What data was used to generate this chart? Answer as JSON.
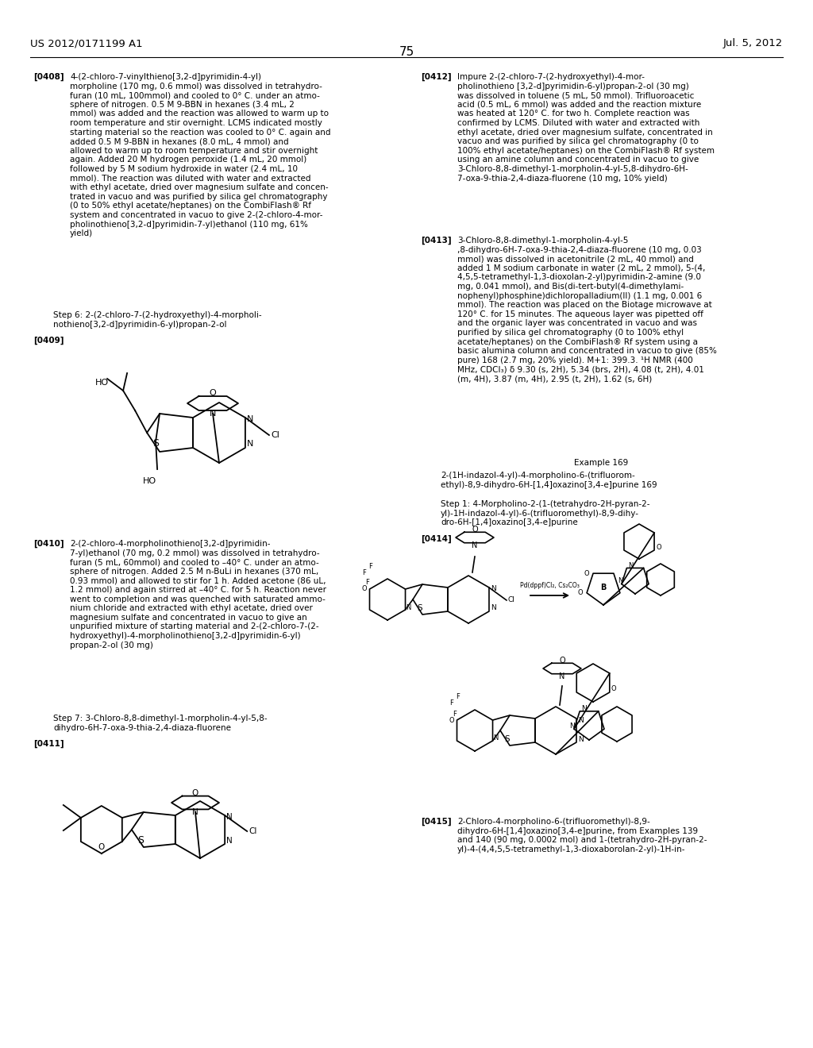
{
  "background_color": "#ffffff",
  "text_color": "#000000",
  "header_left": "US 2012/0171199 A1",
  "header_right": "Jul. 5, 2012",
  "page_number": "75",
  "body_fontsize": 7.5,
  "header_fontsize": 9.5,
  "tag_fontsize": 7.5
}
